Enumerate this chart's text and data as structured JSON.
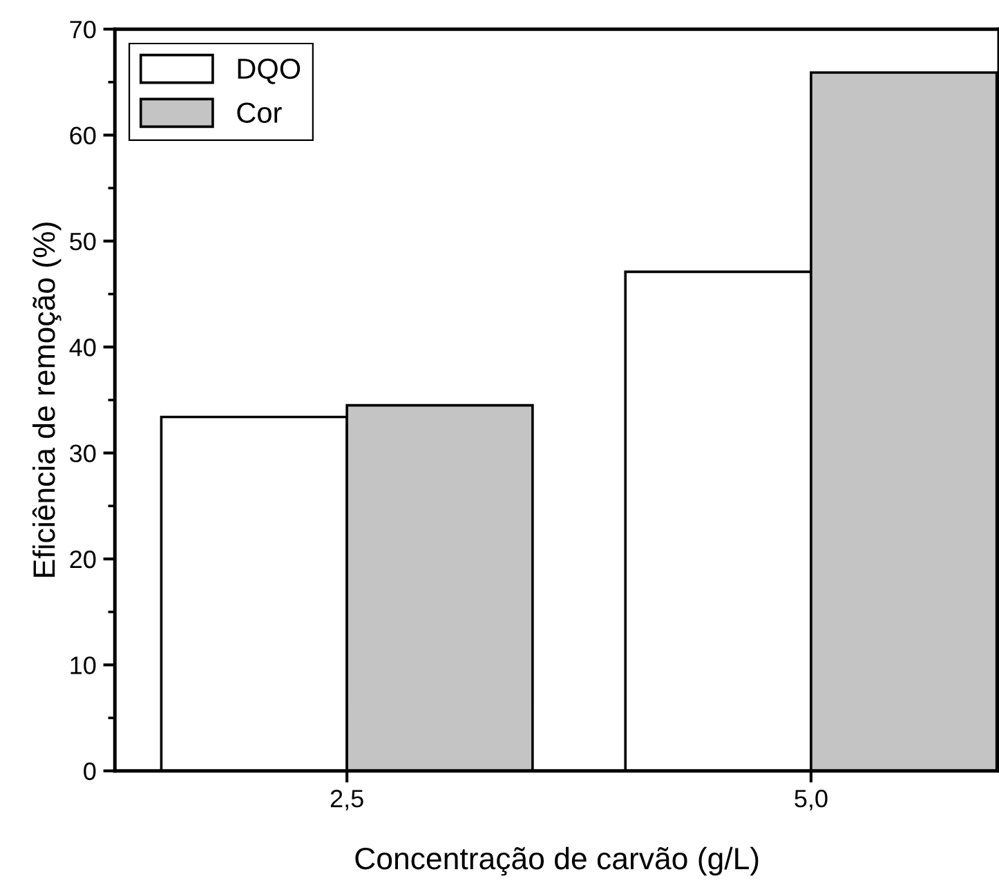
{
  "chart_data": {
    "type": "bar",
    "xlabel": "Concentração de carvão (g/L)",
    "ylabel": "Eficiência de remoção (%)",
    "categories": [
      "2,5",
      "5,0"
    ],
    "series": [
      {
        "name": "DQO",
        "color": "#ffffff",
        "values": [
          33.4,
          47.1
        ]
      },
      {
        "name": "Cor",
        "color": "#c4c4c4",
        "values": [
          34.5,
          65.9
        ]
      }
    ],
    "ylim": [
      0,
      70
    ],
    "yticks": [
      0,
      10,
      20,
      30,
      40,
      50,
      60,
      70
    ],
    "grid": false,
    "legend": "top left"
  }
}
